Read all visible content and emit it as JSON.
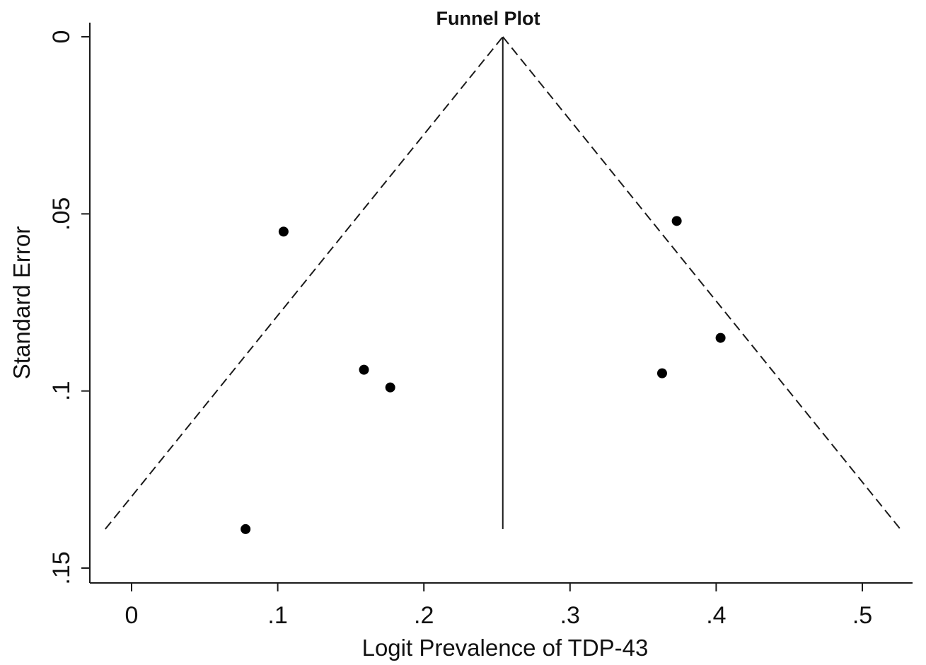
{
  "chart_data": {
    "type": "scatter",
    "title": "Funnel Plot",
    "xlabel": "Logit Prevalence of TDP-43",
    "ylabel": "Standard Error",
    "xlim": [
      -0.015,
      0.535
    ],
    "ylim": [
      0,
      0.155
    ],
    "y_inverted": true,
    "x_ticks": [
      0,
      0.1,
      0.2,
      0.3,
      0.4,
      0.5
    ],
    "x_tick_labels": [
      "0",
      ".1",
      ".2",
      ".3",
      ".4",
      ".5"
    ],
    "y_ticks": [
      0,
      0.05,
      0.1,
      0.15
    ],
    "y_tick_labels": [
      "0",
      ".05",
      ".1",
      ".15"
    ],
    "grid": false,
    "legend": "none",
    "pooled_estimate": 0.254,
    "funnel_max_se": 0.139,
    "funnel_limits": {
      "top": [
        0.254,
        0
      ],
      "bottom_left": [
        -0.018,
        0.139
      ],
      "bottom_right": [
        0.526,
        0.139
      ]
    },
    "points": [
      {
        "x": 0.078,
        "y": 0.139
      },
      {
        "x": 0.104,
        "y": 0.055
      },
      {
        "x": 0.159,
        "y": 0.094
      },
      {
        "x": 0.177,
        "y": 0.099
      },
      {
        "x": 0.363,
        "y": 0.095
      },
      {
        "x": 0.373,
        "y": 0.052
      },
      {
        "x": 0.403,
        "y": 0.085
      }
    ],
    "colors": {
      "points": "#000000",
      "lines": "#1a1a1a"
    }
  }
}
